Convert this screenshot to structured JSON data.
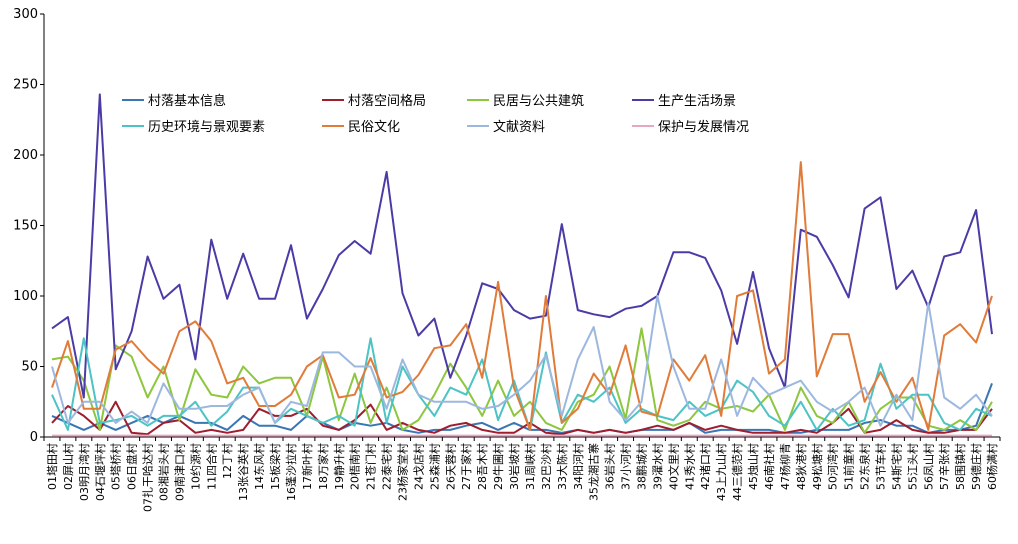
{
  "chart_data": {
    "type": "line",
    "ylim": [
      0,
      300
    ],
    "yticks": [
      "0",
      "50",
      "100",
      "150",
      "200",
      "250",
      "300"
    ],
    "categories": [
      "01塔田村",
      "02屏山村",
      "03明月湾村",
      "04石堰坪村",
      "05塔桥村",
      "06日盘村",
      "07扎干哈达村",
      "08湘岩头村",
      "09南津口村",
      "10约源村",
      "11四合村",
      "12丁村",
      "13张谷英村",
      "14东风村",
      "15板梁村",
      "16蓬沙拉村",
      "17新叶村",
      "18万家村",
      "19静升村",
      "20梧南村",
      "21苍门村",
      "22泰宅村",
      "23杨家堂村",
      "24戈店村",
      "25森浦村",
      "26天蓉村",
      "27于家村",
      "28吾木村",
      "29牛圃村",
      "30岩坡村",
      "31周峡村",
      "32巴沙村",
      "33大陈村",
      "34阳河村",
      "35龙潮古寨",
      "36岩头村",
      "37小河村",
      "38鹏城村",
      "39濯水村",
      "40文里村",
      "41秀水村",
      "42诸口村",
      "43上九山村",
      "44三德范村",
      "45烛山村",
      "46南社村",
      "47杨柳青",
      "48狄港村",
      "49松塘村",
      "50河湾村",
      "51前童村",
      "52东泉村",
      "53节车村",
      "54斯宅村",
      "55江头村",
      "56凤山村",
      "57辛张村",
      "58围镇村",
      "59德庄村",
      "60杨满村"
    ],
    "legend_position": "top",
    "series": [
      {
        "name": "村落基本信息",
        "color": "#3a75b4",
        "values": [
          15,
          10,
          5,
          10,
          5,
          10,
          15,
          10,
          15,
          10,
          10,
          5,
          15,
          8,
          8,
          5,
          15,
          10,
          5,
          10,
          8,
          10,
          5,
          3,
          5,
          5,
          8,
          10,
          5,
          10,
          5,
          5,
          3,
          5,
          3,
          5,
          3,
          5,
          5,
          5,
          10,
          3,
          5,
          5,
          5,
          5,
          3,
          3,
          5,
          5,
          5,
          10,
          12,
          8,
          8,
          3,
          5,
          5,
          8,
          38
        ]
      },
      {
        "name": "村落空间格局",
        "color": "#9e1e2e",
        "values": [
          10,
          22,
          15,
          5,
          25,
          3,
          2,
          10,
          12,
          3,
          5,
          3,
          5,
          20,
          15,
          15,
          20,
          8,
          5,
          12,
          23,
          5,
          10,
          5,
          3,
          8,
          10,
          5,
          3,
          3,
          10,
          3,
          2,
          5,
          3,
          5,
          3,
          5,
          8,
          5,
          10,
          5,
          8,
          5,
          3,
          3,
          3,
          5,
          3,
          10,
          20,
          3,
          5,
          12,
          5,
          3,
          3,
          5,
          5,
          20
        ]
      },
      {
        "name": "民居与公共建筑",
        "color": "#8dc63f",
        "values": [
          55,
          57,
          40,
          5,
          65,
          57,
          28,
          50,
          12,
          48,
          30,
          28,
          50,
          38,
          42,
          42,
          15,
          57,
          12,
          45,
          10,
          35,
          5,
          12,
          30,
          52,
          35,
          15,
          40,
          15,
          25,
          10,
          5,
          25,
          30,
          50,
          13,
          77,
          12,
          8,
          12,
          25,
          20,
          22,
          18,
          30,
          5,
          35,
          15,
          10,
          25,
          3,
          20,
          28,
          28,
          8,
          5,
          12,
          5,
          25
        ]
      },
      {
        "name": "生产生活场景",
        "color": "#4b3ba6",
        "values": [
          77,
          85,
          28,
          243,
          48,
          75,
          128,
          98,
          108,
          55,
          140,
          98,
          130,
          98,
          98,
          136,
          84,
          105,
          129,
          139,
          130,
          188,
          102,
          72,
          84,
          42,
          72,
          109,
          105,
          90,
          84,
          86,
          151,
          90,
          87,
          85,
          91,
          93,
          100,
          131,
          131,
          127,
          104,
          66,
          117,
          63,
          35,
          147,
          142,
          122,
          99,
          162,
          170,
          105,
          118,
          92,
          128,
          131,
          161,
          73
        ]
      },
      {
        "name": "历史环境与景观要素",
        "color": "#4cc3c4",
        "values": [
          30,
          5,
          70,
          10,
          12,
          15,
          8,
          15,
          15,
          25,
          8,
          18,
          35,
          35,
          10,
          20,
          15,
          10,
          15,
          8,
          70,
          10,
          50,
          30,
          15,
          35,
          30,
          55,
          12,
          40,
          5,
          60,
          10,
          30,
          25,
          35,
          10,
          20,
          15,
          12,
          25,
          15,
          20,
          40,
          32,
          15,
          8,
          25,
          5,
          20,
          8,
          12,
          52,
          20,
          30,
          30,
          10,
          5,
          20,
          15
        ]
      },
      {
        "name": "民俗文化",
        "color": "#e07b39",
        "values": [
          35,
          68,
          20,
          20,
          62,
          68,
          55,
          45,
          75,
          82,
          68,
          38,
          42,
          22,
          22,
          30,
          50,
          58,
          28,
          30,
          56,
          28,
          32,
          44,
          63,
          65,
          80,
          42,
          110,
          35,
          5,
          100,
          10,
          20,
          45,
          30,
          65,
          18,
          15,
          55,
          40,
          58,
          15,
          100,
          104,
          45,
          55,
          195,
          43,
          73,
          73,
          25,
          46,
          25,
          42,
          5,
          72,
          80,
          67,
          100
        ]
      },
      {
        "name": "文献资料",
        "color": "#9db8df",
        "values": [
          50,
          10,
          25,
          25,
          10,
          18,
          10,
          38,
          20,
          20,
          22,
          22,
          30,
          35,
          10,
          25,
          22,
          60,
          60,
          50,
          50,
          20,
          55,
          30,
          25,
          25,
          25,
          20,
          22,
          30,
          40,
          58,
          15,
          55,
          78,
          25,
          12,
          25,
          100,
          50,
          20,
          20,
          55,
          15,
          42,
          30,
          35,
          40,
          25,
          18,
          25,
          35,
          8,
          30,
          12,
          95,
          28,
          20,
          30,
          15
        ]
      },
      {
        "name": "保护与发展情况",
        "color": "#e6a8c0",
        "values": [
          1,
          1,
          1,
          1,
          1,
          1,
          1,
          1,
          1,
          1,
          1,
          1,
          1,
          1,
          1,
          1,
          1,
          1,
          1,
          1,
          1,
          1,
          1,
          1,
          1,
          1,
          1,
          1,
          1,
          1,
          1,
          1,
          1,
          1,
          1,
          1,
          1,
          1,
          1,
          1,
          1,
          1,
          1,
          1,
          1,
          1,
          1,
          1,
          1,
          1,
          1,
          1,
          1,
          1,
          1,
          1,
          1,
          1,
          1,
          1
        ]
      }
    ]
  }
}
